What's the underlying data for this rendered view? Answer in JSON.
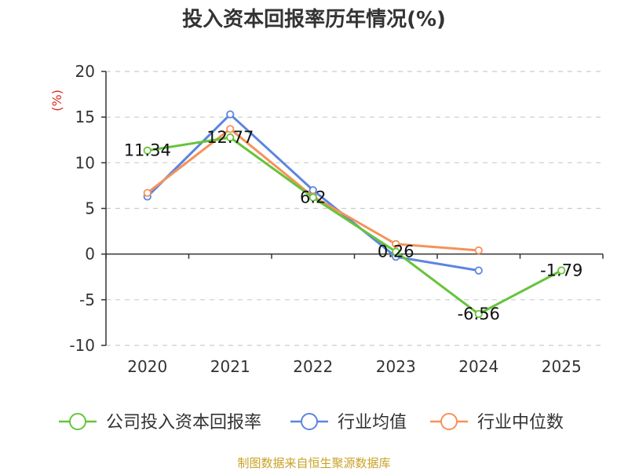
{
  "colors": {
    "company": "#66c43a",
    "industry_avg": "#5b85e0",
    "industry_median": "#f5925a"
  },
  "chart_data": {
    "type": "line",
    "title": "投入资本回报率历年情况(%)",
    "ylabel": "(%)",
    "xlabel": "",
    "ylim": [
      -10,
      20
    ],
    "yticks": [
      20,
      15,
      10,
      5,
      0,
      -5,
      -10
    ],
    "categories": [
      "2020",
      "2021",
      "2022",
      "2023",
      "2024",
      "2025"
    ],
    "grid": true,
    "legend_position": "bottom",
    "series": [
      {
        "name": "公司投入资本回报率",
        "color_key": "company",
        "values": [
          11.34,
          12.77,
          6.2,
          0.26,
          -6.56,
          -1.79
        ],
        "labels": [
          "11.34",
          "12.77",
          "6.2",
          "0.26",
          "-6.56",
          "-1.79"
        ]
      },
      {
        "name": "行业均值",
        "color_key": "industry_avg",
        "values": [
          6.3,
          15.3,
          7.0,
          -0.3,
          -1.8,
          null
        ]
      },
      {
        "name": "行业中位数",
        "color_key": "industry_median",
        "values": [
          6.7,
          13.7,
          6.3,
          1.1,
          0.4,
          null
        ]
      }
    ],
    "source": "制图数据来自恒生聚源数据库"
  }
}
